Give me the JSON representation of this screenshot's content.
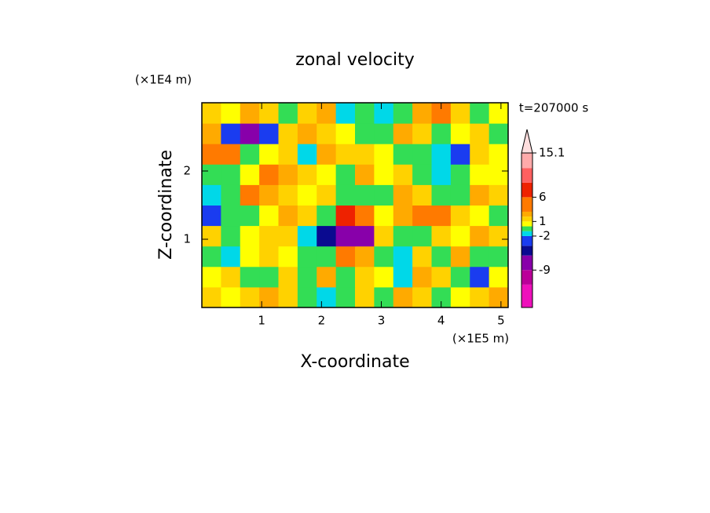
{
  "chart_data": {
    "type": "contour",
    "title": "zonal velocity",
    "x_label": "X-coordinate",
    "y_label": "Z-coordinate",
    "x_unit": "(×1E5 m)",
    "y_unit": "(×1E4 m)",
    "time_label": "t=207000 s",
    "xlim": [
      0,
      5.12
    ],
    "ylim": [
      0,
      3
    ],
    "xticks": [
      1,
      2,
      3,
      4,
      5
    ],
    "yticks": [
      1,
      2
    ],
    "x": [
      0.16,
      0.48,
      0.8,
      1.12,
      1.44,
      1.76,
      2.08,
      2.4,
      2.72,
      3.04,
      3.36,
      3.68,
      4.0,
      4.32,
      4.64,
      4.96
    ],
    "y": [
      0.15,
      0.45,
      0.75,
      1.05,
      1.35,
      1.65,
      1.95,
      2.25,
      2.55,
      2.85
    ],
    "z": [
      [
        1,
        0.5,
        1,
        2,
        1,
        -1,
        -2,
        -1,
        1,
        -0.5,
        2,
        1,
        -1,
        0.5,
        1,
        2
      ],
      [
        0.5,
        1,
        -0.5,
        -0.5,
        1,
        -0.5,
        2,
        -1,
        1,
        0.5,
        -2,
        2,
        1,
        -0.5,
        -4,
        0.5
      ],
      [
        -1,
        -1.5,
        0.5,
        1,
        0.5,
        -1,
        -1,
        3,
        2,
        -1,
        -2,
        1,
        -0.5,
        2,
        -1,
        -0.5
      ],
      [
        1,
        -1,
        0.5,
        1,
        1,
        -2,
        -6,
        -8,
        -7,
        1,
        -1,
        -1,
        1,
        0.5,
        2,
        1
      ],
      [
        -3,
        -1,
        -0.5,
        0.5,
        2,
        1,
        -1,
        6,
        5,
        0.5,
        2,
        3,
        3,
        1,
        0.5,
        -0.5
      ],
      [
        -2,
        -1,
        3,
        2,
        1,
        0.5,
        1,
        -0.5,
        -0.5,
        -1,
        2,
        1,
        -0.5,
        -1,
        2,
        1
      ],
      [
        -1,
        -0.5,
        0.5,
        3,
        2,
        1,
        0.5,
        -1,
        2,
        0.5,
        1,
        -1,
        -2,
        -1,
        0.5,
        0.5
      ],
      [
        4,
        3,
        -1,
        0.5,
        1,
        -2,
        2,
        1,
        1,
        0.5,
        -0.5,
        -1,
        -2,
        -4,
        1,
        0.5
      ],
      [
        2,
        -4,
        -7,
        -3,
        1,
        2,
        1,
        0.5,
        -1,
        -0.5,
        2,
        1,
        -0.5,
        0.5,
        1,
        -1
      ],
      [
        1,
        0.5,
        2,
        1,
        -0.5,
        1,
        2,
        -1.5,
        -0.5,
        -2,
        -1,
        2,
        3,
        1,
        -0.5,
        0.5
      ]
    ],
    "colorbar": {
      "clim": [
        -16.7,
        15.1
      ],
      "levels": [
        -16.7,
        -12,
        -9,
        -6,
        -4,
        -2,
        -1,
        0,
        1,
        2,
        3,
        6,
        9,
        12,
        15.1
      ],
      "colors": [
        "#ee11bb",
        "#bb0099",
        "#8800aa",
        "#0a0a90",
        "#1a3cf0",
        "#00d8e8",
        "#33dd55",
        "#ffff00",
        "#ffd200",
        "#ffaa00",
        "#ff7a00",
        "#ee2200",
        "#ff6060",
        "#ffaaaa"
      ],
      "extend_color": "#ffdede",
      "ticks": [
        15.1,
        6,
        1,
        -2,
        -9
      ]
    }
  }
}
